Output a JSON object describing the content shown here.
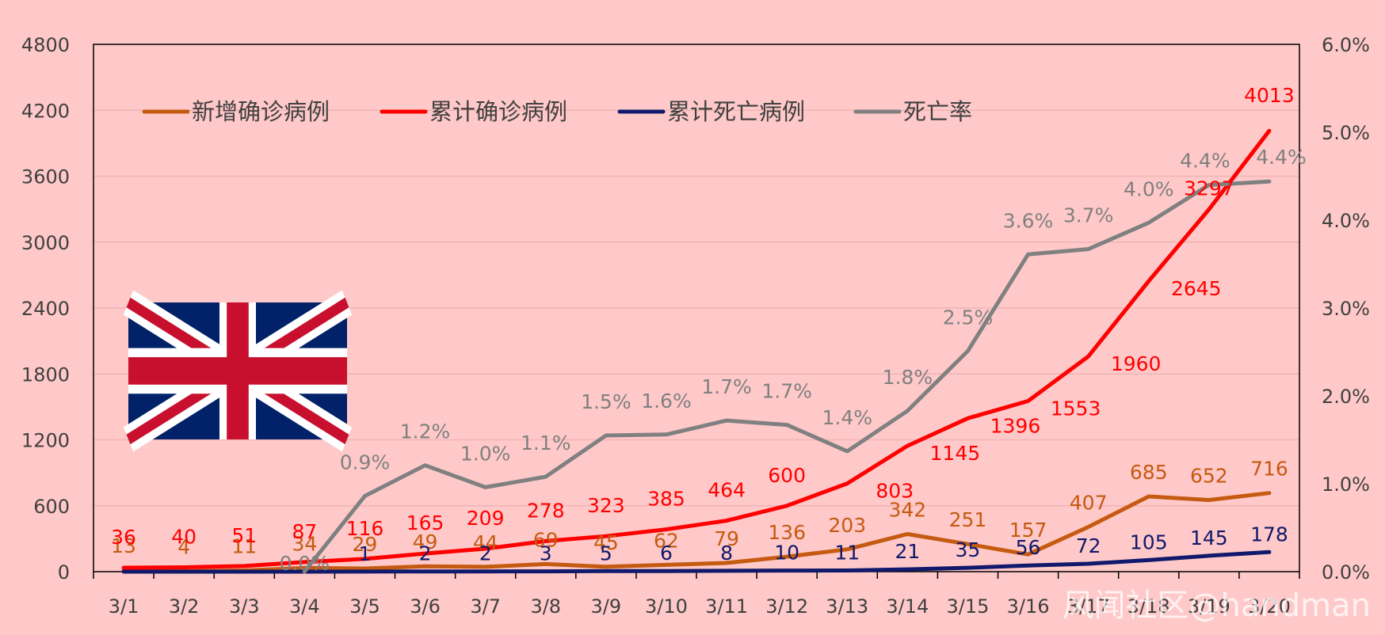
{
  "chart_data": {
    "type": "line",
    "title": "",
    "xlabel": "",
    "ylabel": "",
    "categories": [
      "3/1",
      "3/2",
      "3/3",
      "3/4",
      "3/5",
      "3/6",
      "3/7",
      "3/8",
      "3/9",
      "3/10",
      "3/11",
      "3/12",
      "3/13",
      "3/14",
      "3/15",
      "3/16",
      "3/17",
      "3/18",
      "3/19",
      "3/20"
    ],
    "ylim": [
      0,
      4800
    ],
    "yticks": [
      0,
      600,
      1200,
      1800,
      2400,
      3000,
      3600,
      4200,
      4800
    ],
    "y2lim": [
      0,
      6.0
    ],
    "y2ticks": [
      "0.0%",
      "1.0%",
      "2.0%",
      "3.0%",
      "4.0%",
      "5.0%",
      "6.0%"
    ],
    "grid": true,
    "legend_position": "top-left",
    "series": [
      {
        "name": "新增确诊病例",
        "axis": "left",
        "color": "#c55a11",
        "values": [
          13,
          4,
          11,
          34,
          29,
          49,
          44,
          69,
          45,
          62,
          79,
          136,
          203,
          342,
          251,
          157,
          407,
          685,
          652,
          716
        ],
        "labels": [
          "13",
          "4",
          "11",
          "34",
          "29",
          "49",
          "44",
          "69",
          "45",
          "62",
          "79",
          "136",
          "203",
          "342",
          "251",
          "157",
          "407",
          "685",
          "652",
          "716"
        ]
      },
      {
        "name": "累计确诊病例",
        "axis": "left",
        "color": "#ff0000",
        "values": [
          36,
          40,
          51,
          87,
          116,
          165,
          209,
          278,
          323,
          385,
          464,
          600,
          803,
          1145,
          1396,
          1553,
          1960,
          2645,
          3297,
          4013
        ],
        "labels": [
          "36",
          "40",
          "51",
          "87",
          "116",
          "165",
          "209",
          "278",
          "323",
          "385",
          "464",
          "600",
          "803",
          "1145",
          "1396",
          "1553",
          "1960",
          "2645",
          "3297",
          "4013"
        ]
      },
      {
        "name": "累计死亡病例",
        "axis": "left",
        "color": "#10196b",
        "values": [
          0,
          0,
          0,
          0,
          1,
          2,
          2,
          3,
          5,
          6,
          8,
          10,
          11,
          21,
          35,
          56,
          72,
          105,
          145,
          178
        ],
        "labels": [
          "",
          "",
          "",
          "",
          "1",
          "2",
          "2",
          "3",
          "5",
          "6",
          "8",
          "10",
          "11",
          "21",
          "35",
          "56",
          "72",
          "105",
          "145",
          "178"
        ]
      },
      {
        "name": "死亡率",
        "axis": "right",
        "color": "#808080",
        "start_index": 3,
        "values": [
          null,
          null,
          null,
          0.0,
          0.86,
          1.21,
          0.96,
          1.08,
          1.55,
          1.56,
          1.72,
          1.67,
          1.37,
          1.83,
          2.51,
          3.61,
          3.67,
          3.97,
          4.4,
          4.44
        ],
        "labels": [
          "",
          "",
          "",
          "0.0%",
          "0.9%",
          "1.2%",
          "1.0%",
          "1.1%",
          "1.5%",
          "1.6%",
          "1.7%",
          "1.7%",
          "1.4%",
          "1.8%",
          "2.5%",
          "3.6%",
          "3.7%",
          "4.0%",
          "4.4%",
          "4.4%"
        ]
      }
    ],
    "watermark": "风闻社区@handman"
  }
}
